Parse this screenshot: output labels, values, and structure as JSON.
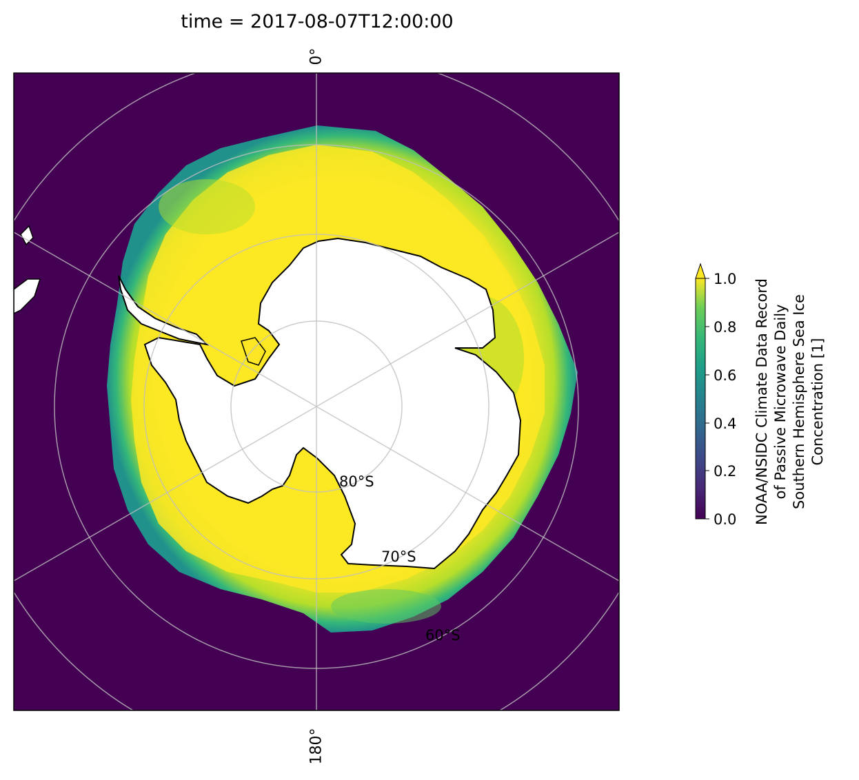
{
  "title": "time = 2017-08-07T12:00:00",
  "longitude_labels": {
    "top": "0°",
    "bottom": "180°"
  },
  "latitude_labels": [
    "80°S",
    "70°S",
    "60°S"
  ],
  "colorbar": {
    "label_lines": [
      "NOAA/NSIDC Climate Data Record",
      "of Passive Microwave Daily",
      "Southern Hemisphere Sea Ice",
      "Concentration [1]"
    ],
    "ticks": [
      "0.0",
      "0.2",
      "0.4",
      "0.6",
      "0.8",
      "1.0"
    ],
    "range": [
      0.0,
      1.0
    ],
    "extend": "max",
    "colormap": "viridis"
  },
  "colors": {
    "ocean": "#440154",
    "ice_high": "#fde725",
    "ice_mid": "#8fd744",
    "ice_low": "#2a788e",
    "land": "#ffffff",
    "coastline": "#000000",
    "gridlines": "#bfbfbf"
  },
  "projection": "South Polar Stereographic",
  "region": "Antarctica"
}
